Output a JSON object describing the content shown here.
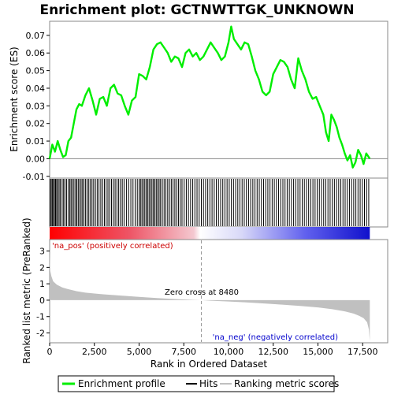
{
  "chart_data": {
    "type": "line",
    "title": "Enrichment plot: GCTNWTTGK_UNKNOWN",
    "x_range": [
      0,
      18900
    ],
    "x_ticks": [
      0,
      2500,
      5000,
      7500,
      10000,
      12500,
      15000,
      17500
    ],
    "x_tick_labels": [
      "0",
      "2,500",
      "5,000",
      "7,500",
      "10,000",
      "12,500",
      "15,000",
      "17,500"
    ],
    "xlabel": "Rank in Ordered Dataset",
    "top_panel": {
      "ylabel": "Enrichment score (ES)",
      "ylim": [
        -0.011,
        0.078
      ],
      "y_ticks": [
        -0.01,
        0.0,
        0.01,
        0.02,
        0.03,
        0.04,
        0.05,
        0.06,
        0.07
      ],
      "y_tick_labels": [
        "-0.01",
        "0.00",
        "0.01",
        "0.02",
        "0.03",
        "0.04",
        "0.05",
        "0.06",
        "0.07"
      ],
      "series": [
        {
          "name": "Enrichment profile",
          "color": "#00ff00",
          "x": [
            0,
            150,
            300,
            450,
            600,
            750,
            900,
            1050,
            1200,
            1350,
            1500,
            1650,
            1800,
            2000,
            2200,
            2400,
            2600,
            2800,
            3000,
            3200,
            3400,
            3600,
            3800,
            4000,
            4200,
            4400,
            4600,
            4800,
            5000,
            5200,
            5400,
            5600,
            5800,
            6000,
            6200,
            6400,
            6600,
            6800,
            7000,
            7200,
            7400,
            7600,
            7800,
            8000,
            8200,
            8400,
            8600,
            8800,
            9000,
            9200,
            9400,
            9600,
            9800,
            10000,
            10150,
            10300,
            10500,
            10700,
            10900,
            11100,
            11300,
            11500,
            11700,
            11900,
            12100,
            12300,
            12500,
            12700,
            12900,
            13100,
            13300,
            13500,
            13700,
            13900,
            14100,
            14300,
            14500,
            14700,
            14900,
            15100,
            15300,
            15450,
            15600,
            15750,
            15900,
            16050,
            16200,
            16350,
            16500,
            16650,
            16800,
            16950,
            17100,
            17250,
            17400,
            17550,
            17700,
            17900
          ],
          "y": [
            0.0,
            0.008,
            0.004,
            0.01,
            0.005,
            0.001,
            0.002,
            0.01,
            0.012,
            0.02,
            0.028,
            0.031,
            0.03,
            0.036,
            0.04,
            0.033,
            0.025,
            0.034,
            0.035,
            0.03,
            0.04,
            0.042,
            0.037,
            0.036,
            0.03,
            0.025,
            0.033,
            0.035,
            0.048,
            0.047,
            0.045,
            0.052,
            0.062,
            0.065,
            0.066,
            0.063,
            0.06,
            0.055,
            0.058,
            0.057,
            0.052,
            0.06,
            0.062,
            0.058,
            0.06,
            0.056,
            0.058,
            0.062,
            0.066,
            0.063,
            0.06,
            0.056,
            0.058,
            0.066,
            0.075,
            0.068,
            0.065,
            0.062,
            0.066,
            0.065,
            0.058,
            0.05,
            0.045,
            0.038,
            0.036,
            0.038,
            0.048,
            0.052,
            0.056,
            0.055,
            0.052,
            0.045,
            0.04,
            0.057,
            0.05,
            0.045,
            0.038,
            0.034,
            0.035,
            0.03,
            0.025,
            0.015,
            0.01,
            0.025,
            0.022,
            0.018,
            0.012,
            0.008,
            0.003,
            -0.001,
            0.002,
            -0.005,
            -0.002,
            0.005,
            0.002,
            -0.003,
            0.003,
            0.0
          ]
        }
      ]
    },
    "hits_panel": {
      "label": "Hits",
      "color": "#000000",
      "hit_ranks": [
        30,
        90,
        150,
        210,
        270,
        330,
        390,
        460,
        530,
        600,
        700,
        780,
        860,
        950,
        1050,
        1130,
        1200,
        1280,
        1360,
        1450,
        1520,
        1600,
        1680,
        1760,
        1840,
        1920,
        2010,
        2100,
        2190,
        2280,
        2370,
        2460,
        2560,
        2660,
        2760,
        2860,
        2960,
        3060,
        3160,
        3260,
        3360,
        3460,
        3560,
        3660,
        3760,
        3860,
        3960,
        4060,
        4160,
        4300,
        4420,
        4540,
        4660,
        4780,
        4900,
        5000,
        5080,
        5160,
        5240,
        5320,
        5400,
        5480,
        5560,
        5640,
        5720,
        5800,
        5880,
        5960,
        6040,
        6120,
        6200,
        6300,
        6400,
        6500,
        6600,
        6700,
        6800,
        6900,
        7000,
        7100,
        7200,
        7300,
        7400,
        7520,
        7640,
        7760,
        7880,
        8000,
        8120,
        8240,
        8360,
        8480,
        8600,
        8720,
        8840,
        8960,
        9080,
        9200,
        9320,
        9440,
        9560,
        9680,
        9800,
        9920,
        10040,
        10160,
        10280,
        10400,
        10520,
        10640,
        10760,
        10880,
        11000,
        11120,
        11240,
        11360,
        11480,
        11600,
        11720,
        11840,
        11960,
        12080,
        12200,
        12320,
        12440,
        12560,
        12680,
        12800,
        12920,
        13040,
        13160,
        13280,
        13400,
        13520,
        13640,
        13760,
        13880,
        14000,
        14120,
        14240,
        14360,
        14480,
        14600,
        14720,
        14840,
        14960,
        15080,
        15200,
        15320,
        15440,
        15560,
        15680,
        15800,
        15920,
        16040,
        16160,
        16280,
        16400,
        16520,
        16640,
        16760,
        16880,
        17000,
        17120,
        17240,
        17360,
        17480,
        17600,
        17720,
        17840
      ]
    },
    "rank_panel": {
      "ylabel": "Ranked list metric (PreRanked)",
      "legend_name": "Ranking metric scores",
      "fill_color": "#c0c0c0",
      "ylim": [
        -2.6,
        3.7
      ],
      "y_ticks": [
        -2,
        -1,
        0,
        1,
        2,
        3
      ],
      "y_tick_labels": [
        "-2",
        "-1",
        "0",
        "1",
        "2",
        "3"
      ],
      "x": [
        0,
        30,
        100,
        200,
        400,
        700,
        1000,
        1500,
        2000,
        3000,
        4000,
        5000,
        6000,
        7000,
        8000,
        8480,
        9000,
        10000,
        11000,
        12000,
        13000,
        14000,
        15000,
        15800,
        16500,
        17000,
        17300,
        17550,
        17750,
        17850,
        17900
      ],
      "y": [
        3.1,
        1.8,
        1.45,
        1.15,
        0.95,
        0.78,
        0.68,
        0.55,
        0.46,
        0.36,
        0.28,
        0.2,
        0.13,
        0.07,
        0.02,
        0.0,
        -0.03,
        -0.08,
        -0.14,
        -0.2,
        -0.27,
        -0.35,
        -0.44,
        -0.55,
        -0.68,
        -0.82,
        -0.95,
        -1.1,
        -1.35,
        -1.8,
        -2.5
      ],
      "zero_cross_rank": 8480,
      "zero_cross_text": "Zero cross at 8480",
      "pos_label": "'na_pos' (positively correlated)",
      "neg_label": "'na_neg' (negatively correlated)",
      "pos_color": "#cc0000",
      "neg_color": "#0000cc"
    },
    "legend": {
      "placement": "bottom",
      "items": [
        "Enrichment profile",
        "Hits",
        "Ranking metric scores"
      ]
    }
  }
}
